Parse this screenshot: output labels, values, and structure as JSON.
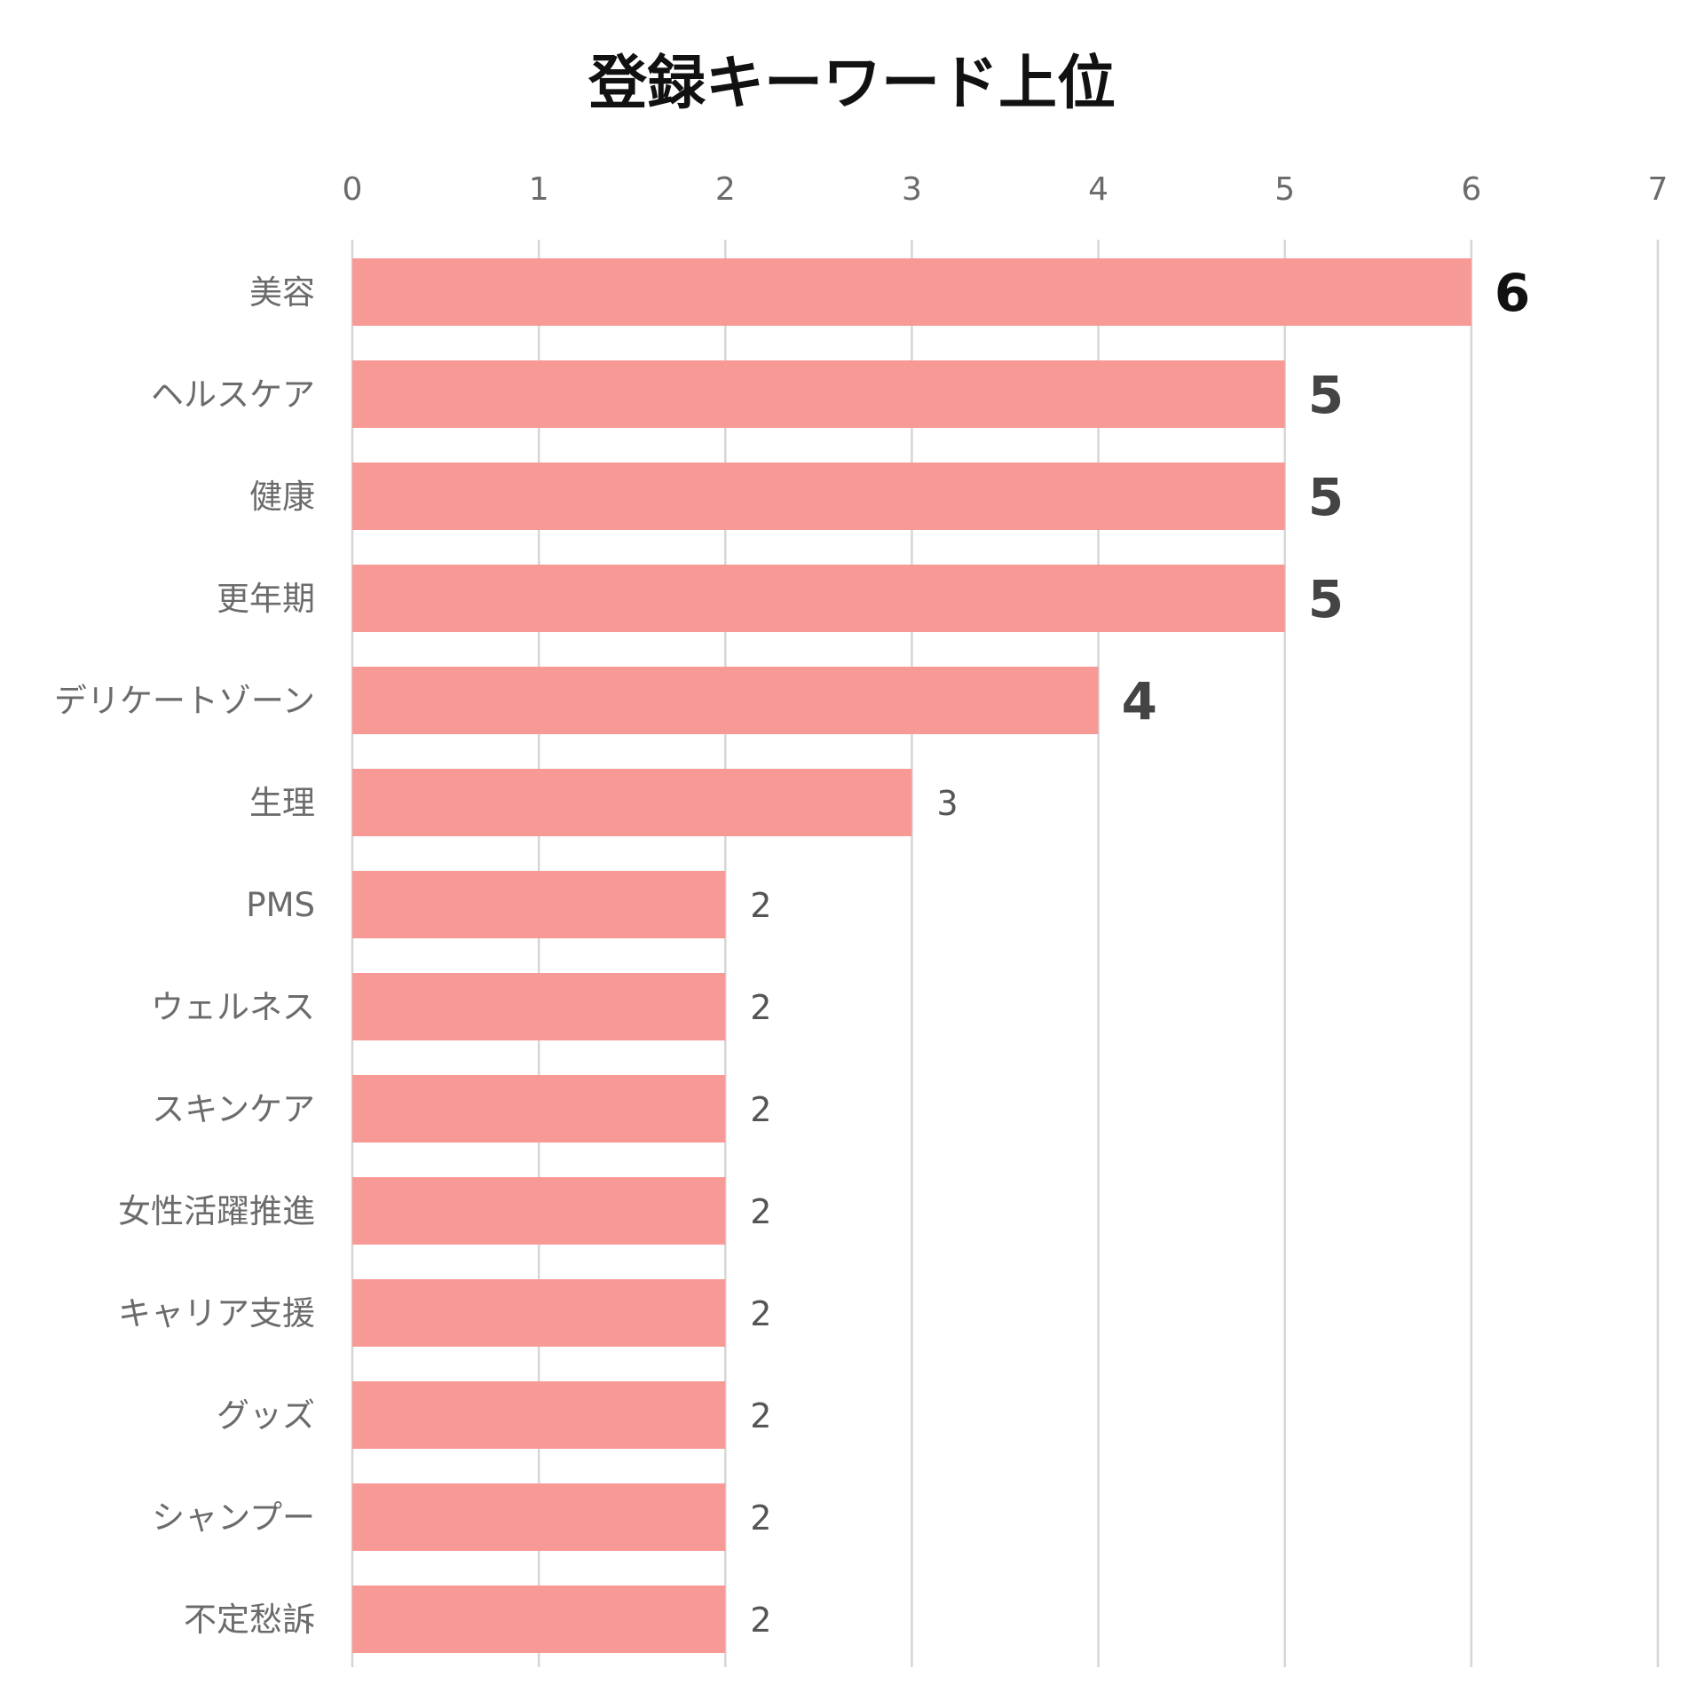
{
  "chart_data": {
    "type": "bar",
    "orientation": "horizontal",
    "title": "登録キーワード上位",
    "xlabel": "",
    "ylabel": "",
    "xlim": [
      0,
      7
    ],
    "x_ticks": [
      0,
      1,
      2,
      3,
      4,
      5,
      6,
      7
    ],
    "tick_labels": [
      "0",
      "1",
      "2",
      "3",
      "4",
      "5",
      "6",
      "7"
    ],
    "x_axis_position": "top",
    "grid": true,
    "legend": false,
    "bar_color": "#F79A96",
    "categories": [
      "美容",
      "ヘルスケア",
      "健康",
      "更年期",
      "デリケートゾーン",
      "生理",
      "PMS",
      "ウェルネス",
      "スキンケア",
      "女性活躍推進",
      "キャリア支援",
      "グッズ",
      "シャンプー",
      "不定愁訴"
    ],
    "values": [
      6,
      5,
      5,
      5,
      4,
      3,
      2,
      2,
      2,
      2,
      2,
      2,
      2,
      2
    ],
    "data_labels": [
      "6",
      "5",
      "5",
      "5",
      "4",
      "3",
      "2",
      "2",
      "2",
      "2",
      "2",
      "2",
      "2",
      "2"
    ]
  }
}
